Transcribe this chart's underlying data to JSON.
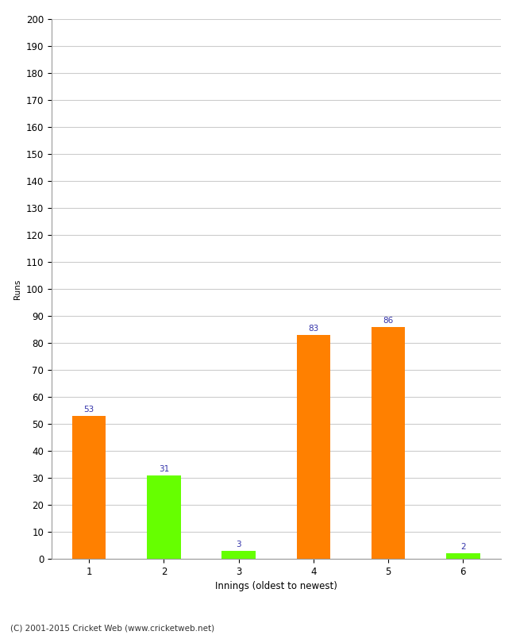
{
  "categories": [
    "1",
    "2",
    "3",
    "4",
    "5",
    "6"
  ],
  "values": [
    53,
    31,
    3,
    83,
    86,
    2
  ],
  "bar_colors": [
    "#FF8000",
    "#66FF00",
    "#66FF00",
    "#FF8000",
    "#FF8000",
    "#66FF00"
  ],
  "ylabel": "Runs",
  "xlabel": "Innings (oldest to newest)",
  "ylim": [
    0,
    200
  ],
  "yticks": [
    0,
    10,
    20,
    30,
    40,
    50,
    60,
    70,
    80,
    90,
    100,
    110,
    120,
    130,
    140,
    150,
    160,
    170,
    180,
    190,
    200
  ],
  "label_color": "#3333AA",
  "label_fontsize": 7.5,
  "footer": "(C) 2001-2015 Cricket Web (www.cricketweb.net)",
  "background_color": "#FFFFFF",
  "grid_color": "#CCCCCC",
  "bar_width": 0.45,
  "tick_fontsize": 8.5,
  "ylabel_fontsize": 7.5,
  "xlabel_fontsize": 8.5
}
